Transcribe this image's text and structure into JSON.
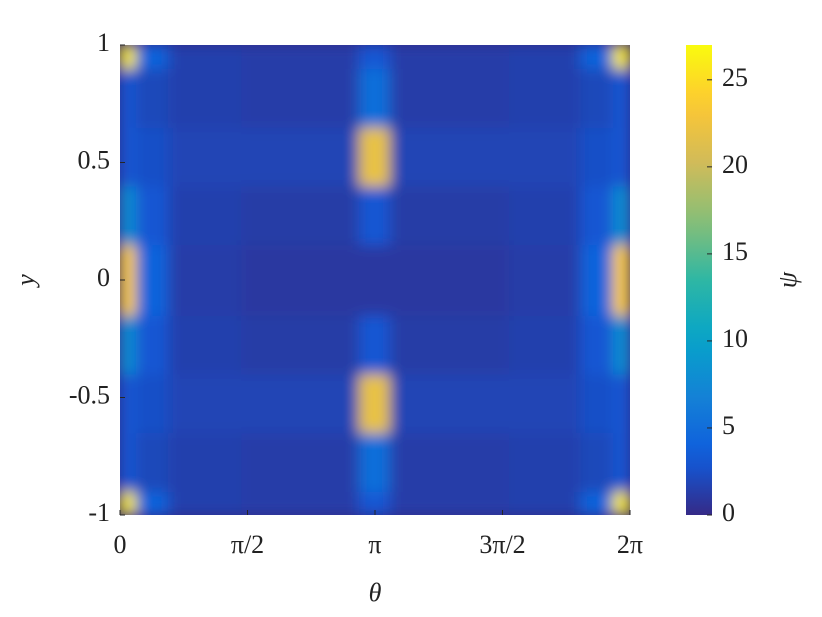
{
  "chart_data": {
    "type": "heatmap",
    "xlabel": "θ",
    "ylabel": "y",
    "colorbar_label": "ψ",
    "x_edges": [
      0,
      0.2,
      0.6,
      1.5,
      2.95,
      3.33,
      4.8,
      5.68,
      6.08,
      6.2832
    ],
    "y_edges": [
      -1,
      -0.9,
      -0.65,
      -0.4,
      -0.15,
      0.15,
      0.4,
      0.65,
      0.9,
      1
    ],
    "z": [
      [
        26,
        4,
        1.5,
        1.3,
        3,
        1.3,
        1.5,
        4,
        26
      ],
      [
        3,
        2,
        1.5,
        1.3,
        5,
        1.3,
        1.5,
        2,
        3
      ],
      [
        3,
        2.5,
        1.8,
        1.8,
        22,
        1.8,
        1.8,
        2.5,
        3
      ],
      [
        8,
        3,
        1.5,
        1.2,
        3,
        1.2,
        1.5,
        3,
        8
      ],
      [
        24,
        4,
        1.3,
        1,
        1,
        1,
        1.3,
        4,
        24
      ],
      [
        8,
        3,
        1.5,
        1.2,
        3,
        1.2,
        1.5,
        3,
        8
      ],
      [
        3,
        2.5,
        1.8,
        1.8,
        22,
        1.8,
        1.8,
        2.5,
        3
      ],
      [
        3,
        2,
        1.5,
        1.3,
        5,
        1.3,
        1.5,
        2,
        3
      ],
      [
        26,
        4,
        1.5,
        1.3,
        3,
        1.3,
        1.5,
        4,
        26
      ]
    ],
    "colormap": "parula",
    "xlim": [
      0,
      6.2832
    ],
    "ylim": [
      -1,
      1
    ],
    "clim": [
      0,
      27
    ],
    "xticks": [
      0,
      {
        "value": 1.5708,
        "label": "π/2"
      },
      {
        "value": 3.1416,
        "label": "π"
      },
      {
        "value": 4.7124,
        "label": "3π/2"
      },
      {
        "value": 6.2832,
        "label": "2π"
      }
    ],
    "yticks": [
      -1,
      -0.5,
      0,
      0.5,
      1
    ],
    "cticks": [
      0,
      5,
      10,
      15,
      20,
      25
    ]
  }
}
